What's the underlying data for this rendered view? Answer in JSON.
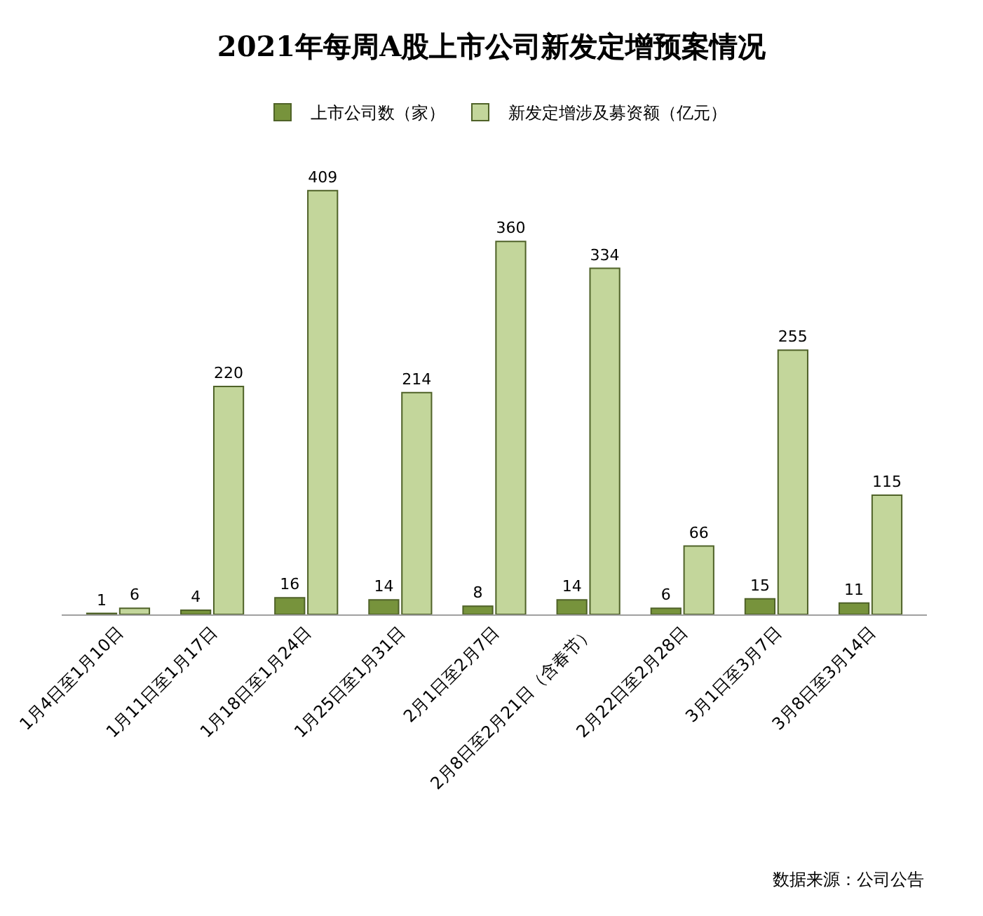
{
  "chart_data": {
    "type": "bar",
    "title": "2021年每周A股上市公司新发定增预案情况",
    "categories": [
      "1月4日至1月10日",
      "1月11日至1月17日",
      "1月18日至1月24日",
      "1月25日至1月31日",
      "2月1日至2月7日",
      "2月8日至2月21日（含春节）",
      "2月22日至2月28日",
      "3月1日至3月7日",
      "3月8日至3月14日"
    ],
    "series": [
      {
        "name": "上市公司数（家）",
        "color": "#77933c",
        "values": [
          1,
          4,
          16,
          14,
          8,
          14,
          6,
          15,
          11
        ]
      },
      {
        "name": "新发定增涉及募资额（亿元）",
        "color": "#c3d69b",
        "values": [
          6,
          220,
          409,
          214,
          360,
          334,
          66,
          255,
          115
        ]
      }
    ],
    "data_labels": true,
    "legend": "top",
    "annotations": [
      "数据来源：公司公告"
    ]
  }
}
